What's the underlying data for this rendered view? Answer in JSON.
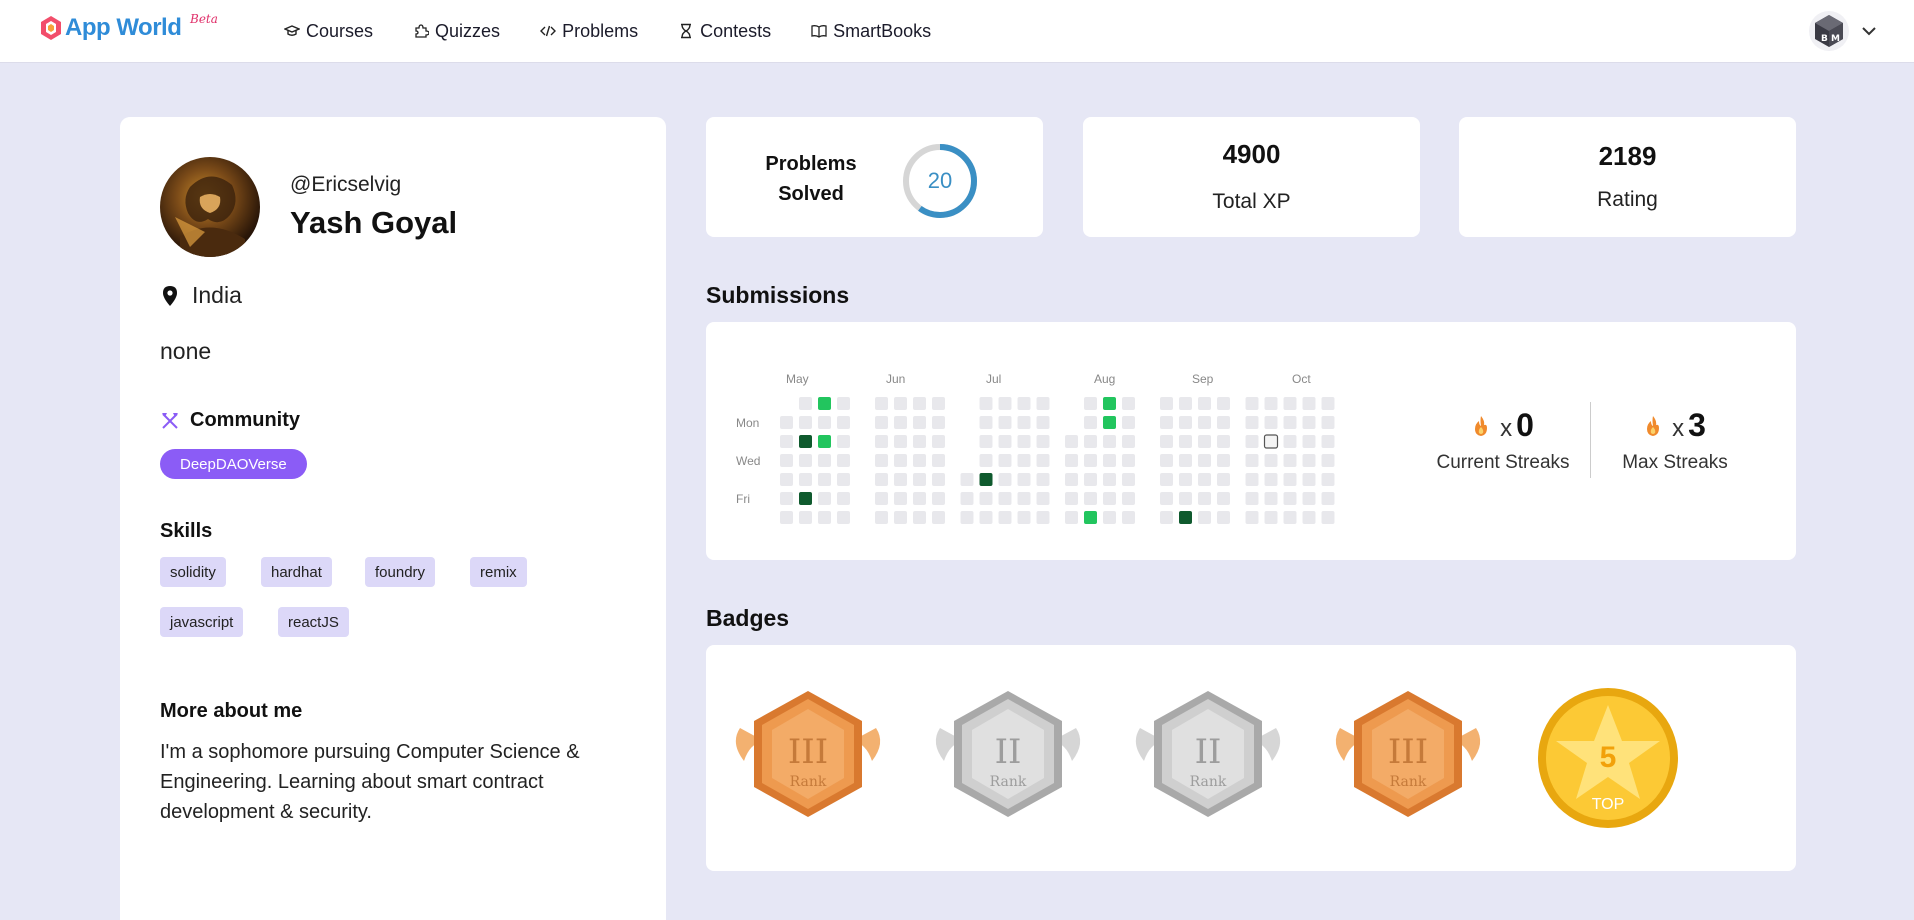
{
  "app": {
    "name": "App World",
    "beta": "Beta"
  },
  "nav": [
    {
      "label": "Courses",
      "icon": "graduation-cap-icon"
    },
    {
      "label": "Quizzes",
      "icon": "puzzle-icon"
    },
    {
      "label": "Problems",
      "icon": "code-icon"
    },
    {
      "label": "Contests",
      "icon": "hourglass-icon"
    },
    {
      "label": "SmartBooks",
      "icon": "book-open-icon"
    }
  ],
  "profile": {
    "handle": "@Ericselvig",
    "name": "Yash Goyal",
    "location": "India",
    "status": "none",
    "community_heading": "Community",
    "community": "DeepDAOVerse",
    "skills_heading": "Skills",
    "skills": [
      "solidity",
      "hardhat",
      "foundry",
      "remix",
      "javascript",
      "reactJS"
    ],
    "about_heading": "More about me",
    "about": "I'm a sophomore pursuing Computer Science & Engineering. Learning about smart contract development & security."
  },
  "stats": {
    "problems_label_line1": "Problems",
    "problems_label_line2": "Solved",
    "problems_solved": "20",
    "problems_progress_fraction": 0.6,
    "xp": "4900",
    "xp_label": "Total XP",
    "rating": "2189",
    "rating_label": "Rating"
  },
  "submissions": {
    "heading": "Submissions",
    "months": [
      "May",
      "Jun",
      "Jul",
      "Aug",
      "Sep",
      "Oct"
    ],
    "weekdays": [
      "Mon",
      "Wed",
      "Fri"
    ],
    "current_streak_label": "Current Streaks",
    "current_streak": "0",
    "max_streak_label": "Max Streaks",
    "max_streak": "3",
    "multiplier": "x",
    "colors": {
      "empty": "#e8e8ec",
      "light": "#22c55e",
      "dark": "#0f5a2e",
      "today_border": "#555"
    }
  },
  "badges": {
    "heading": "Badges",
    "items": [
      {
        "type": "rank",
        "numeral": "III",
        "label": "Rank",
        "tier": "bronze"
      },
      {
        "type": "rank",
        "numeral": "II",
        "label": "Rank",
        "tier": "silver"
      },
      {
        "type": "rank",
        "numeral": "II",
        "label": "Rank",
        "tier": "silver"
      },
      {
        "type": "rank",
        "numeral": "III",
        "label": "Rank",
        "tier": "bronze"
      },
      {
        "type": "top",
        "numeral": "5",
        "label": "TOP",
        "tier": "gold"
      }
    ]
  }
}
